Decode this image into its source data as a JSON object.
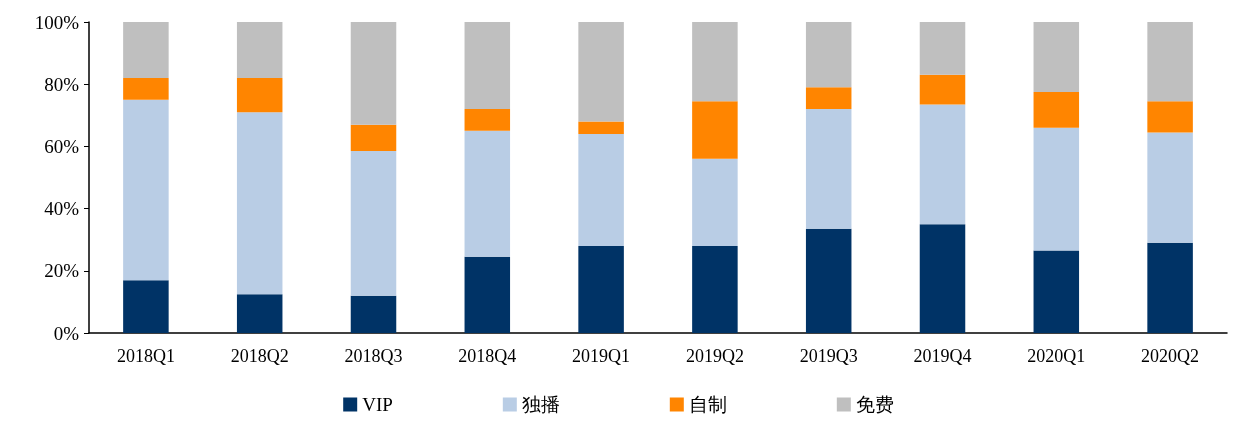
{
  "chart_data": {
    "type": "bar",
    "stacked": true,
    "categories": [
      "2018Q1",
      "2018Q2",
      "2018Q3",
      "2018Q4",
      "2019Q1",
      "2019Q2",
      "2019Q3",
      "2019Q4",
      "2020Q1",
      "2020Q2"
    ],
    "series": [
      {
        "name": "VIP",
        "color": "#003366",
        "values": [
          17,
          12.5,
          12,
          24.5,
          28,
          28,
          33.5,
          35,
          26.5,
          29
        ]
      },
      {
        "name": "独播",
        "color": "#b9cde5",
        "values": [
          58,
          58.5,
          46.5,
          40.5,
          36,
          28,
          38.5,
          38.5,
          39.5,
          35.5
        ]
      },
      {
        "name": "自制",
        "color": "#ff8500",
        "values": [
          7,
          11,
          8.5,
          7,
          4,
          18.5,
          7,
          9.5,
          11.5,
          10
        ]
      },
      {
        "name": "免费",
        "color": "#bfbfbf",
        "values": [
          18,
          18,
          33,
          28,
          32,
          25.5,
          21,
          17,
          22.5,
          25.5
        ]
      }
    ],
    "ylim": [
      0,
      100
    ],
    "yticks": [
      {
        "value": 0,
        "label": "0%"
      },
      {
        "value": 20,
        "label": "20%"
      },
      {
        "value": 40,
        "label": "40%"
      },
      {
        "value": 60,
        "label": "60%"
      },
      {
        "value": 80,
        "label": "80%"
      },
      {
        "value": 100,
        "label": "100%"
      }
    ],
    "grid": false,
    "legend": "bottom"
  }
}
